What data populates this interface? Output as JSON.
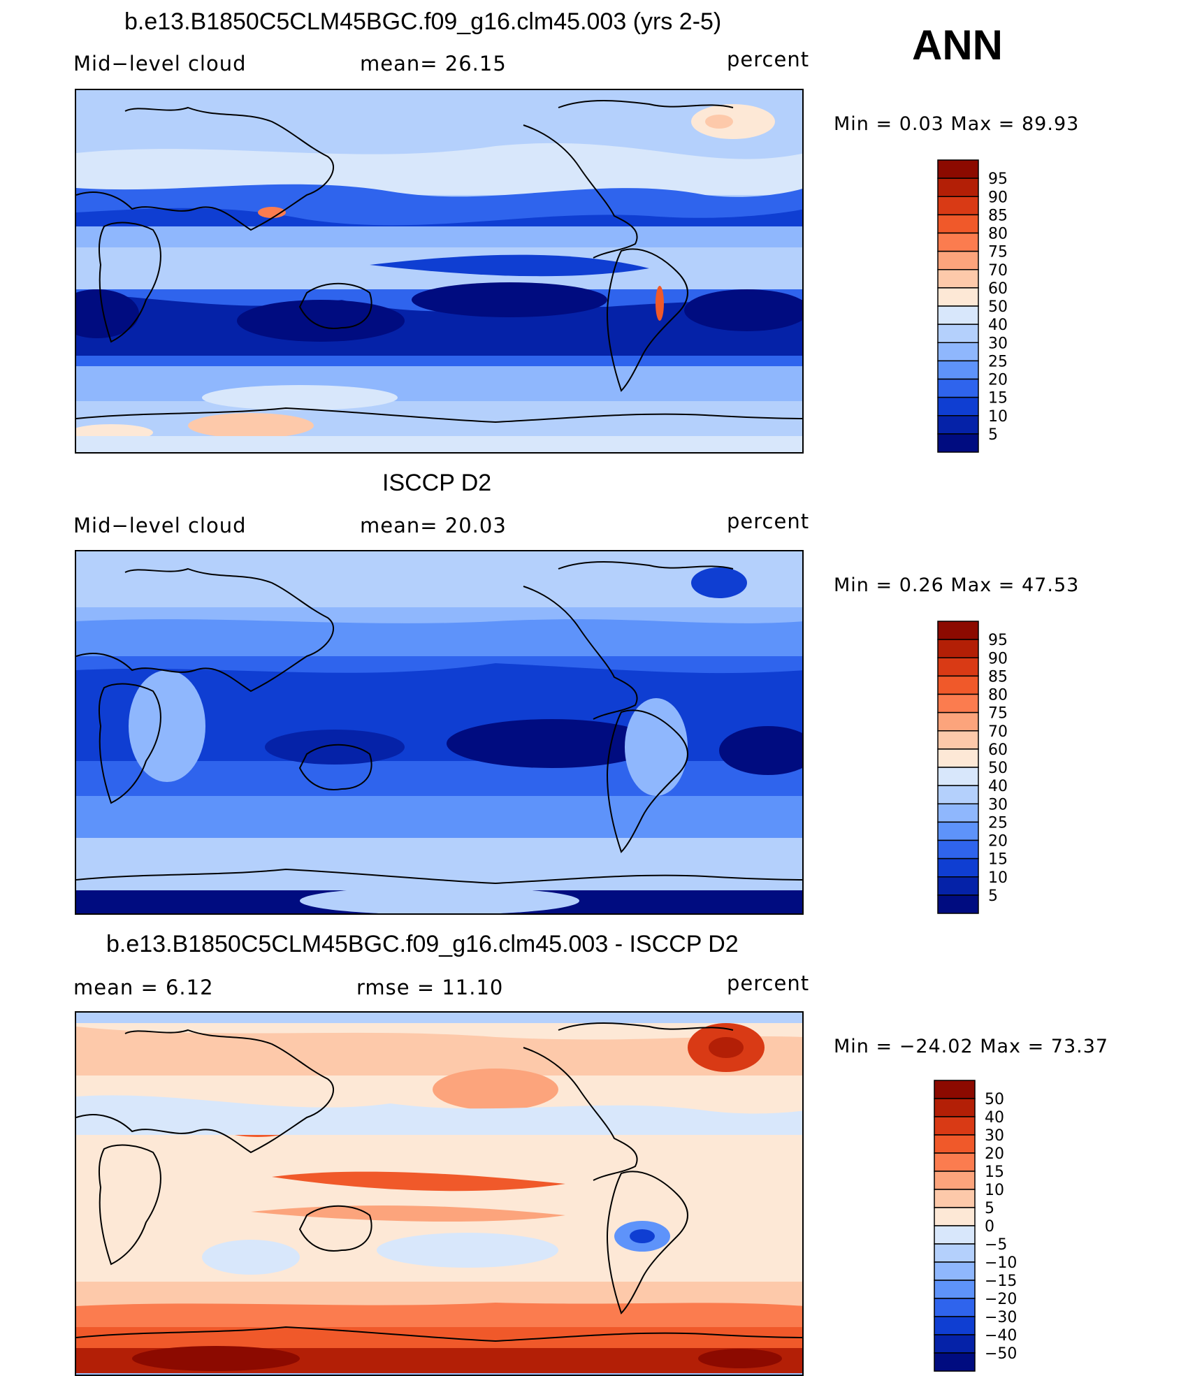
{
  "header": {
    "season": "ANN"
  },
  "panels": [
    {
      "title": "b.e13.B1850C5CLM45BGC.f09_g16.clm45.003 (yrs 2-5)",
      "left_label": "Mid−level cloud",
      "center_label": "mean=   26.15",
      "units": "percent",
      "minmax": "Min =     0.03  Max =    89.93",
      "colorbar": {
        "labels": [
          "95",
          "90",
          "85",
          "80",
          "75",
          "70",
          "60",
          "50",
          "40",
          "30",
          "25",
          "20",
          "15",
          "10",
          "5"
        ],
        "colors": [
          "#8c0a00",
          "#b31f06",
          "#d93a15",
          "#f0592a",
          "#fb7c4f",
          "#fca47c",
          "#fdc9aa",
          "#fde8d6",
          "#d8e7fb",
          "#b4d0fc",
          "#8fb7fd",
          "#5e93fa",
          "#2f64ed",
          "#0f3ed2",
          "#0522a8",
          "#000c80"
        ]
      },
      "chart_data": {
        "type": "heatmap",
        "title": "b.e13.B1850C5CLM45BGC.f09_g16.clm45.003 (yrs 2-5)",
        "variable": "Mid−level cloud",
        "units": "percent",
        "mean": 26.15,
        "min": 0.03,
        "max": 89.93,
        "levels": [
          5,
          10,
          15,
          20,
          25,
          30,
          40,
          50,
          60,
          70,
          75,
          80,
          85,
          90,
          95
        ]
      }
    },
    {
      "title": "ISCCP D2",
      "left_label": "Mid−level cloud",
      "center_label": "mean=   20.03",
      "units": "percent",
      "minmax": "Min =     0.26  Max =    47.53",
      "colorbar": {
        "labels": [
          "95",
          "90",
          "85",
          "80",
          "75",
          "70",
          "60",
          "50",
          "40",
          "30",
          "25",
          "20",
          "15",
          "10",
          "5"
        ],
        "colors": [
          "#8c0a00",
          "#b31f06",
          "#d93a15",
          "#f0592a",
          "#fb7c4f",
          "#fca47c",
          "#fdc9aa",
          "#fde8d6",
          "#d8e7fb",
          "#b4d0fc",
          "#8fb7fd",
          "#5e93fa",
          "#2f64ed",
          "#0f3ed2",
          "#0522a8",
          "#000c80"
        ]
      },
      "chart_data": {
        "type": "heatmap",
        "title": "ISCCP D2",
        "variable": "Mid−level cloud",
        "units": "percent",
        "mean": 20.03,
        "min": 0.26,
        "max": 47.53,
        "levels": [
          5,
          10,
          15,
          20,
          25,
          30,
          40,
          50,
          60,
          70,
          75,
          80,
          85,
          90,
          95
        ]
      }
    },
    {
      "title": "b.e13.B1850C5CLM45BGC.f09_g16.clm45.003 - ISCCP D2",
      "left_label": "mean =     6.12",
      "center_label": "rmse  =    11.10",
      "units": "percent",
      "minmax": "Min = −24.02  Max =    73.37",
      "colorbar": {
        "labels": [
          "50",
          "40",
          "30",
          "20",
          "15",
          "10",
          "5",
          "0",
          "−5",
          "−10",
          "−15",
          "−20",
          "−30",
          "−40",
          "−50"
        ],
        "colors": [
          "#8c0a00",
          "#b31f06",
          "#d93a15",
          "#f0592a",
          "#fb7c4f",
          "#fca47c",
          "#fdc9aa",
          "#fde8d6",
          "#d8e7fb",
          "#b4d0fc",
          "#8fb7fd",
          "#5e93fa",
          "#2f64ed",
          "#0f3ed2",
          "#0522a8",
          "#000c80"
        ]
      },
      "chart_data": {
        "type": "heatmap",
        "title": "b.e13.B1850C5CLM45BGC.f09_g16.clm45.003 - ISCCP D2",
        "units": "percent",
        "mean": 6.12,
        "rmse": 11.1,
        "min": -24.02,
        "max": 73.37,
        "levels": [
          -50,
          -40,
          -30,
          -20,
          -15,
          -10,
          -5,
          0,
          5,
          10,
          15,
          20,
          30,
          40,
          50
        ]
      }
    }
  ]
}
